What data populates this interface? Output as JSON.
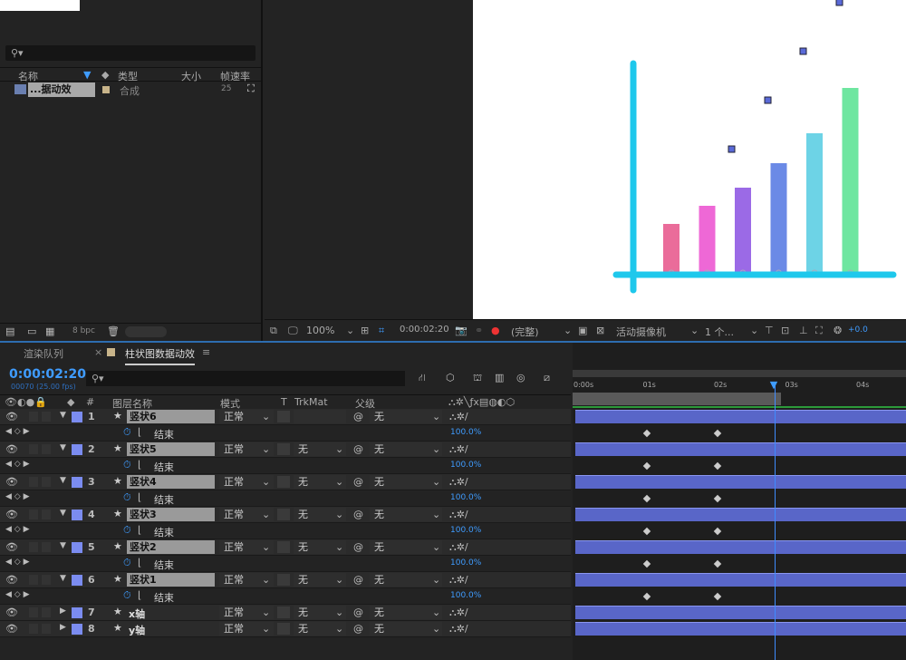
{
  "project": {
    "search_placeholder": "⚲▾",
    "columns": {
      "name": "名称",
      "type": "类型",
      "size": "大小",
      "fps": "帧速率"
    },
    "item": {
      "name": "...据动效",
      "type": "合成",
      "fps": "25"
    },
    "bpc": "8 bpc"
  },
  "viewer": {
    "zoom": "100%",
    "timecode": "0:00:02:20",
    "resolution": "(完整)",
    "camera": "活动摄像机",
    "views": "1 个...",
    "exposure": "+0.0",
    "bars": [
      {
        "value": 55,
        "color": "#ea6c9a"
      },
      {
        "value": 75,
        "color": "#ee68d6"
      },
      {
        "value": 95,
        "color": "#9b6ae6"
      },
      {
        "value": 122,
        "color": "#6b8ae6"
      },
      {
        "value": 155,
        "color": "#6dd3e6"
      },
      {
        "value": 205,
        "color": "#6ee6a0"
      }
    ],
    "axis_color": "#1ec8ec"
  },
  "timeline": {
    "tabs": [
      "渲染队列",
      "柱状图数据动效"
    ],
    "time": "0:00:02:20",
    "frames": "00070 (25.00 fps)",
    "headers": {
      "num": "#",
      "name": "图层名称",
      "mode": "模式",
      "t": "T",
      "trkmat": "TrkMat",
      "parent": "父级"
    },
    "ruler": [
      "0:00s",
      "01s",
      "02s",
      "03s",
      "04s"
    ],
    "layers": [
      {
        "num": "1",
        "name": "竖状6",
        "mode": "正常",
        "trkmat": "",
        "parent": "无",
        "prop": "结束",
        "value": "100.0%"
      },
      {
        "num": "2",
        "name": "竖状5",
        "mode": "正常",
        "trkmat": "无",
        "parent": "无",
        "prop": "结束",
        "value": "100.0%"
      },
      {
        "num": "3",
        "name": "竖状4",
        "mode": "正常",
        "trkmat": "无",
        "parent": "无",
        "prop": "结束",
        "value": "100.0%"
      },
      {
        "num": "4",
        "name": "竖状3",
        "mode": "正常",
        "trkmat": "无",
        "parent": "无",
        "prop": "结束",
        "value": "100.0%"
      },
      {
        "num": "5",
        "name": "竖状2",
        "mode": "正常",
        "trkmat": "无",
        "parent": "无",
        "prop": "结束",
        "value": "100.0%"
      },
      {
        "num": "6",
        "name": "竖状1",
        "mode": "正常",
        "trkmat": "无",
        "parent": "无",
        "prop": "结束",
        "value": "100.0%"
      },
      {
        "num": "7",
        "name": "x轴",
        "mode": "正常",
        "trkmat": "无",
        "parent": "无"
      },
      {
        "num": "8",
        "name": "y轴",
        "mode": "正常",
        "trkmat": "无",
        "parent": "无"
      }
    ],
    "keyframes_s": [
      1,
      2
    ],
    "playhead_s": 2.8,
    "layer_color": "#7b8cf0"
  }
}
